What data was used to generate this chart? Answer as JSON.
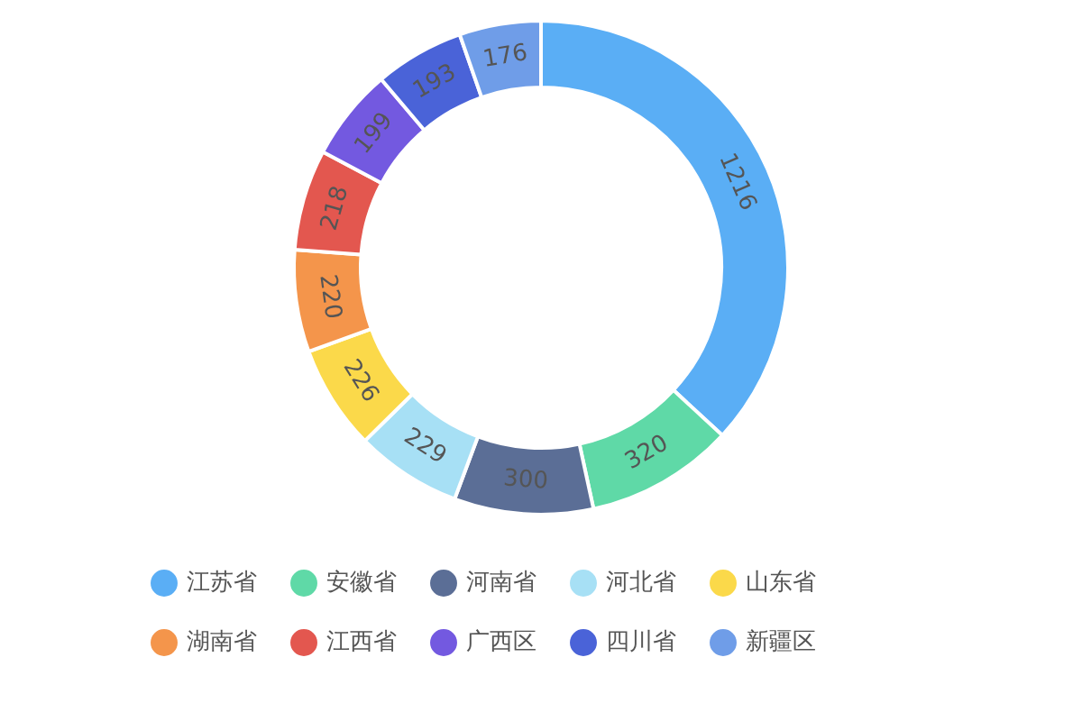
{
  "chart_data": {
    "type": "donut",
    "categories": [
      "江苏省",
      "安徽省",
      "河南省",
      "河北省",
      "山东省",
      "湖南省",
      "江西省",
      "广西区",
      "四川省",
      "新疆区"
    ],
    "values": [
      1216,
      320,
      300,
      229,
      226,
      220,
      218,
      199,
      193,
      176
    ],
    "colors": [
      "#5aaef5",
      "#5fd9a7",
      "#5b6e96",
      "#a7e0f5",
      "#fbd94a",
      "#f4954b",
      "#e3574f",
      "#7359e0",
      "#4a63d8",
      "#6f9de8"
    ],
    "data_labels": true,
    "legend": "bottom"
  }
}
